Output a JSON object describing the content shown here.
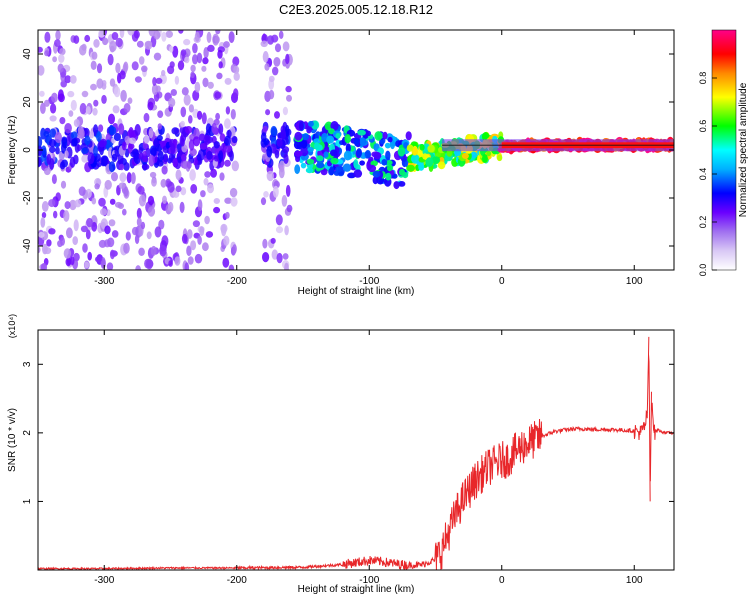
{
  "title": "C2E3.2025.005.12.18.R12",
  "chart_data": [
    {
      "type": "heatmap",
      "xlabel": "Height of straight line (km)",
      "ylabel": "Frequency (Hz)",
      "xlim": [
        -350,
        130
      ],
      "ylim": [
        -50,
        50
      ],
      "x_ticks": [
        -300,
        -200,
        -100,
        0,
        100
      ],
      "y_ticks": [
        -40,
        -20,
        0,
        20,
        40
      ],
      "colorbar": {
        "label": "Normalized spectral amplitude",
        "range": [
          0,
          1
        ],
        "ticks": [
          "0.0",
          "0.2",
          "0.4",
          "0.6",
          "0.8"
        ],
        "colormap": [
          "#ffffff",
          "#b488ee",
          "#6a00ff",
          "#0000ff",
          "#00e5ff",
          "#00ff00",
          "#ffff00",
          "#ff8800",
          "#ff0000",
          "#ff0088"
        ]
      },
      "regions": [
        {
          "x_range": [
            -350,
            -290
          ],
          "freq_spread": [
            -50,
            50
          ],
          "mean_amplitude": 0.15
        },
        {
          "x_range": [
            -290,
            -250
          ],
          "freq_spread": [
            -50,
            50
          ],
          "mean_amplitude": 0.12
        },
        {
          "x_range": [
            -250,
            -200
          ],
          "freq_spread": [
            -50,
            50
          ],
          "mean_amplitude": 0.1
        },
        {
          "x_range": [
            -180,
            -160
          ],
          "freq_spread": [
            -50,
            50
          ],
          "mean_amplitude": 0.15
        },
        {
          "x_range": [
            -155,
            -70
          ],
          "freq_spread": [
            -10,
            10
          ],
          "mean_amplitude": 0.35
        },
        {
          "x_range": [
            -70,
            0
          ],
          "freq_spread": [
            -5,
            5
          ],
          "mean_amplitude": 0.55
        },
        {
          "x_range": [
            0,
            130
          ],
          "freq_spread": [
            0,
            3
          ],
          "mean_amplitude": 0.9
        }
      ],
      "ridge": [
        {
          "x": -350,
          "f": 0
        },
        {
          "x": -160,
          "f": 2
        },
        {
          "x": -120,
          "f": 0
        },
        {
          "x": -100,
          "f": -2
        },
        {
          "x": -80,
          "f": -5
        },
        {
          "x": -65,
          "f": -3
        },
        {
          "x": -50,
          "f": -2
        },
        {
          "x": -30,
          "f": 0
        },
        {
          "x": -10,
          "f": 1
        },
        {
          "x": 20,
          "f": 2
        },
        {
          "x": 60,
          "f": 2
        },
        {
          "x": 100,
          "f": 2
        },
        {
          "x": 130,
          "f": 2
        }
      ]
    },
    {
      "type": "line",
      "xlabel": "Height of straight line (km)",
      "ylabel": "SNR (10 * v/v)",
      "y_multiplier": "(x10⁴)",
      "xlim": [
        -350,
        130
      ],
      "ylim": [
        0,
        3.5
      ],
      "x_ticks": [
        -300,
        -200,
        -100,
        0,
        100
      ],
      "y_ticks": [
        1,
        2,
        3
      ],
      "series": [
        {
          "color": "#e8272a",
          "x": [
            -350,
            -300,
            -250,
            -200,
            -150,
            -120,
            -100,
            -90,
            -80,
            -70,
            -60,
            -50,
            -45,
            -40,
            -35,
            -30,
            -25,
            -20,
            -15,
            -10,
            -5,
            0,
            5,
            10,
            15,
            20,
            25,
            30,
            40,
            50,
            60,
            70,
            80,
            90,
            100,
            105,
            108,
            110,
            111,
            112,
            113,
            115,
            118,
            120,
            125,
            130
          ],
          "values": [
            0.02,
            0.02,
            0.03,
            0.03,
            0.04,
            0.08,
            0.14,
            0.12,
            0.09,
            0.07,
            0.08,
            0.15,
            0.3,
            0.55,
            0.8,
            1.0,
            1.15,
            1.3,
            1.4,
            1.5,
            1.55,
            1.6,
            1.62,
            1.72,
            1.8,
            1.85,
            1.9,
            1.95,
            2.02,
            2.05,
            2.06,
            2.05,
            2.05,
            2.04,
            2.03,
            2.0,
            2.1,
            2.3,
            3.4,
            1.0,
            2.6,
            2.0,
            2.05,
            2.02,
            2.0,
            2.0
          ]
        }
      ]
    }
  ]
}
